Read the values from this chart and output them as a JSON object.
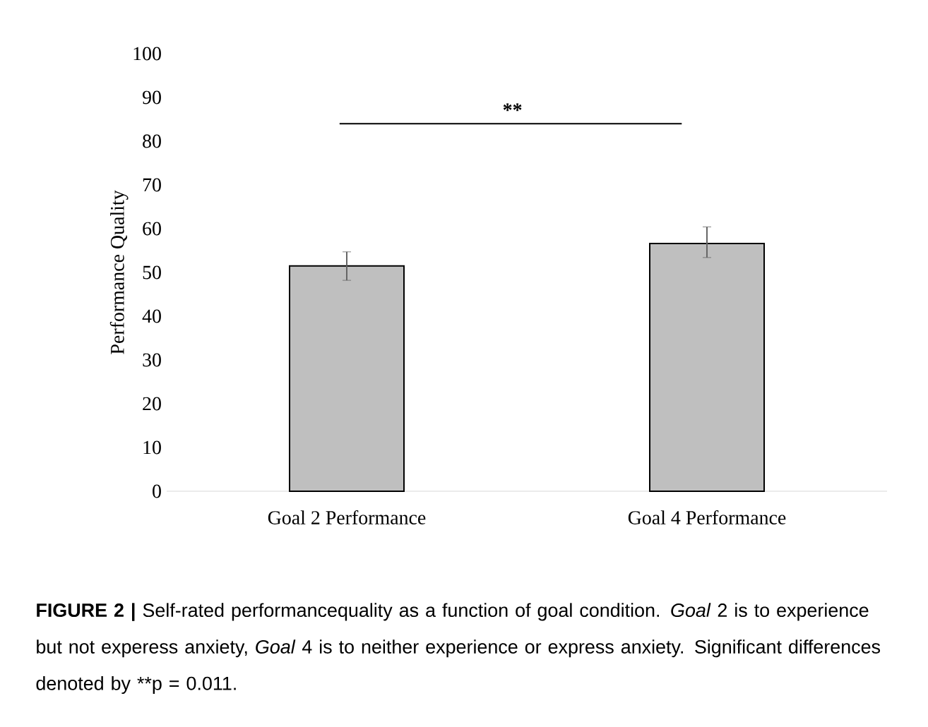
{
  "chart_data": {
    "type": "bar",
    "ylabel": "Performance Quality",
    "categories": [
      "Goal 2 Performance",
      "Goal 4 Performance"
    ],
    "values": [
      51.5,
      56.6
    ],
    "color": "#bfbfbf",
    "errors": [
      [
        48.2,
        54.7
      ],
      [
        53.4,
        60.4
      ]
    ],
    "ylim": [
      0,
      100
    ],
    "yticks": [
      0,
      10,
      20,
      30,
      40,
      50,
      60,
      70,
      80,
      90,
      100
    ],
    "grid": false,
    "annotations": [
      "**",
      "**FIGURE 2 |** Self-rated performancequality as a function of goal condition. *Goal* 2 is to experience but not experess anxiety, *Goal* 4 is to neither experience or express anxiety. Significant differences denoted by **p = 0.011."
    ]
  }
}
